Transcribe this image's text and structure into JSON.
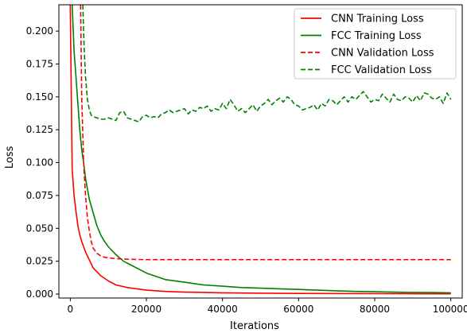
{
  "chart_data": {
    "type": "line",
    "title": "",
    "xlabel": "Iterations",
    "ylabel": "Loss",
    "xlim": [
      -3000,
      103000
    ],
    "ylim": [
      -0.003,
      0.22
    ],
    "xticks": [
      0,
      20000,
      40000,
      60000,
      80000,
      100000
    ],
    "xtick_labels": [
      "0",
      "20000",
      "40000",
      "60000",
      "80000",
      "100000"
    ],
    "yticks": [
      0.0,
      0.025,
      0.05,
      0.075,
      0.1,
      0.125,
      0.15,
      0.175,
      0.2
    ],
    "ytick_labels": [
      "0.000",
      "0.025",
      "0.050",
      "0.075",
      "0.100",
      "0.125",
      "0.150",
      "0.175",
      "0.200"
    ],
    "grid": false,
    "legend_position": "top-right",
    "series": [
      {
        "name": "CNN Training Loss",
        "color": "#ff0000",
        "dash": "solid",
        "x": [
          0,
          500,
          1000,
          1500,
          2000,
          2500,
          3000,
          4000,
          5000,
          6000,
          8000,
          10000,
          12000,
          15000,
          20000,
          25000,
          30000,
          40000,
          50000,
          60000,
          80000,
          100000
        ],
        "y": [
          0.22,
          0.095,
          0.075,
          0.063,
          0.052,
          0.045,
          0.04,
          0.032,
          0.026,
          0.02,
          0.014,
          0.01,
          0.007,
          0.005,
          0.003,
          0.002,
          0.0015,
          0.001,
          0.0007,
          0.0005,
          0.0003,
          0.0002
        ]
      },
      {
        "name": "FCC Training Loss",
        "color": "#008000",
        "dash": "solid",
        "x": [
          500,
          1000,
          1500,
          2000,
          2500,
          3000,
          3500,
          4000,
          5000,
          6000,
          7000,
          8000,
          9000,
          10000,
          12000,
          14000,
          16000,
          18000,
          20000,
          25000,
          30000,
          35000,
          40000,
          45000,
          50000,
          55000,
          60000,
          65000,
          70000,
          75000,
          80000,
          85000,
          90000,
          95000,
          100000
        ],
        "y": [
          0.22,
          0.185,
          0.165,
          0.145,
          0.125,
          0.11,
          0.1,
          0.088,
          0.072,
          0.062,
          0.052,
          0.045,
          0.04,
          0.036,
          0.03,
          0.025,
          0.022,
          0.019,
          0.016,
          0.011,
          0.009,
          0.007,
          0.006,
          0.005,
          0.0045,
          0.004,
          0.0035,
          0.003,
          0.0025,
          0.002,
          0.0018,
          0.0015,
          0.0013,
          0.0012,
          0.001
        ]
      },
      {
        "name": "CNN Validation Loss",
        "color": "#ff0000",
        "dash": "dashed",
        "x": [
          2700,
          3000,
          3500,
          4000,
          4500,
          5000,
          5500,
          6000,
          7000,
          8000,
          9000,
          10000,
          12000,
          15000,
          20000,
          30000,
          40000,
          50000,
          60000,
          70000,
          80000,
          90000,
          100000
        ],
        "y": [
          0.22,
          0.15,
          0.1,
          0.075,
          0.058,
          0.048,
          0.04,
          0.035,
          0.031,
          0.029,
          0.028,
          0.0275,
          0.027,
          0.0265,
          0.0262,
          0.0262,
          0.0262,
          0.0262,
          0.0262,
          0.0262,
          0.0262,
          0.0262,
          0.0262
        ]
      },
      {
        "name": "FCC Validation Loss",
        "color": "#008000",
        "dash": "dashed",
        "x": [
          3300,
          3600,
          4000,
          4500,
          5000,
          5500,
          6000,
          7000,
          8000,
          9000,
          10000,
          11000,
          12000,
          13000,
          14000,
          15000,
          16000,
          17000,
          18000,
          19000,
          20000,
          21000,
          22000,
          23000,
          24000,
          25000,
          26000,
          27000,
          28000,
          29000,
          30000,
          31000,
          32000,
          33000,
          34000,
          35000,
          36000,
          37000,
          38000,
          39000,
          40000,
          41000,
          42000,
          43000,
          44000,
          45000,
          46000,
          47000,
          48000,
          49000,
          50000,
          51000,
          52000,
          53000,
          54000,
          55000,
          56000,
          57000,
          58000,
          59000,
          60000,
          61000,
          62000,
          63000,
          64000,
          65000,
          66000,
          67000,
          68000,
          69000,
          70000,
          71000,
          72000,
          73000,
          74000,
          75000,
          76000,
          77000,
          78000,
          79000,
          80000,
          81000,
          82000,
          83000,
          84000,
          85000,
          86000,
          87000,
          88000,
          89000,
          90000,
          91000,
          92000,
          93000,
          94000,
          95000,
          96000,
          97000,
          98000,
          99000,
          100000
        ],
        "y": [
          0.22,
          0.19,
          0.165,
          0.148,
          0.14,
          0.136,
          0.135,
          0.134,
          0.133,
          0.133,
          0.134,
          0.133,
          0.132,
          0.138,
          0.139,
          0.134,
          0.133,
          0.132,
          0.131,
          0.135,
          0.136,
          0.134,
          0.135,
          0.134,
          0.137,
          0.138,
          0.14,
          0.138,
          0.139,
          0.14,
          0.141,
          0.137,
          0.14,
          0.139,
          0.142,
          0.141,
          0.143,
          0.139,
          0.141,
          0.14,
          0.145,
          0.141,
          0.148,
          0.144,
          0.139,
          0.141,
          0.138,
          0.141,
          0.144,
          0.139,
          0.143,
          0.145,
          0.148,
          0.144,
          0.147,
          0.149,
          0.146,
          0.15,
          0.148,
          0.144,
          0.143,
          0.14,
          0.141,
          0.142,
          0.144,
          0.14,
          0.145,
          0.143,
          0.148,
          0.147,
          0.144,
          0.147,
          0.15,
          0.146,
          0.15,
          0.148,
          0.151,
          0.154,
          0.15,
          0.146,
          0.148,
          0.147,
          0.152,
          0.149,
          0.146,
          0.152,
          0.148,
          0.147,
          0.15,
          0.149,
          0.146,
          0.151,
          0.147,
          0.153,
          0.152,
          0.149,
          0.148,
          0.15,
          0.145,
          0.153,
          0.148
        ]
      }
    ]
  }
}
